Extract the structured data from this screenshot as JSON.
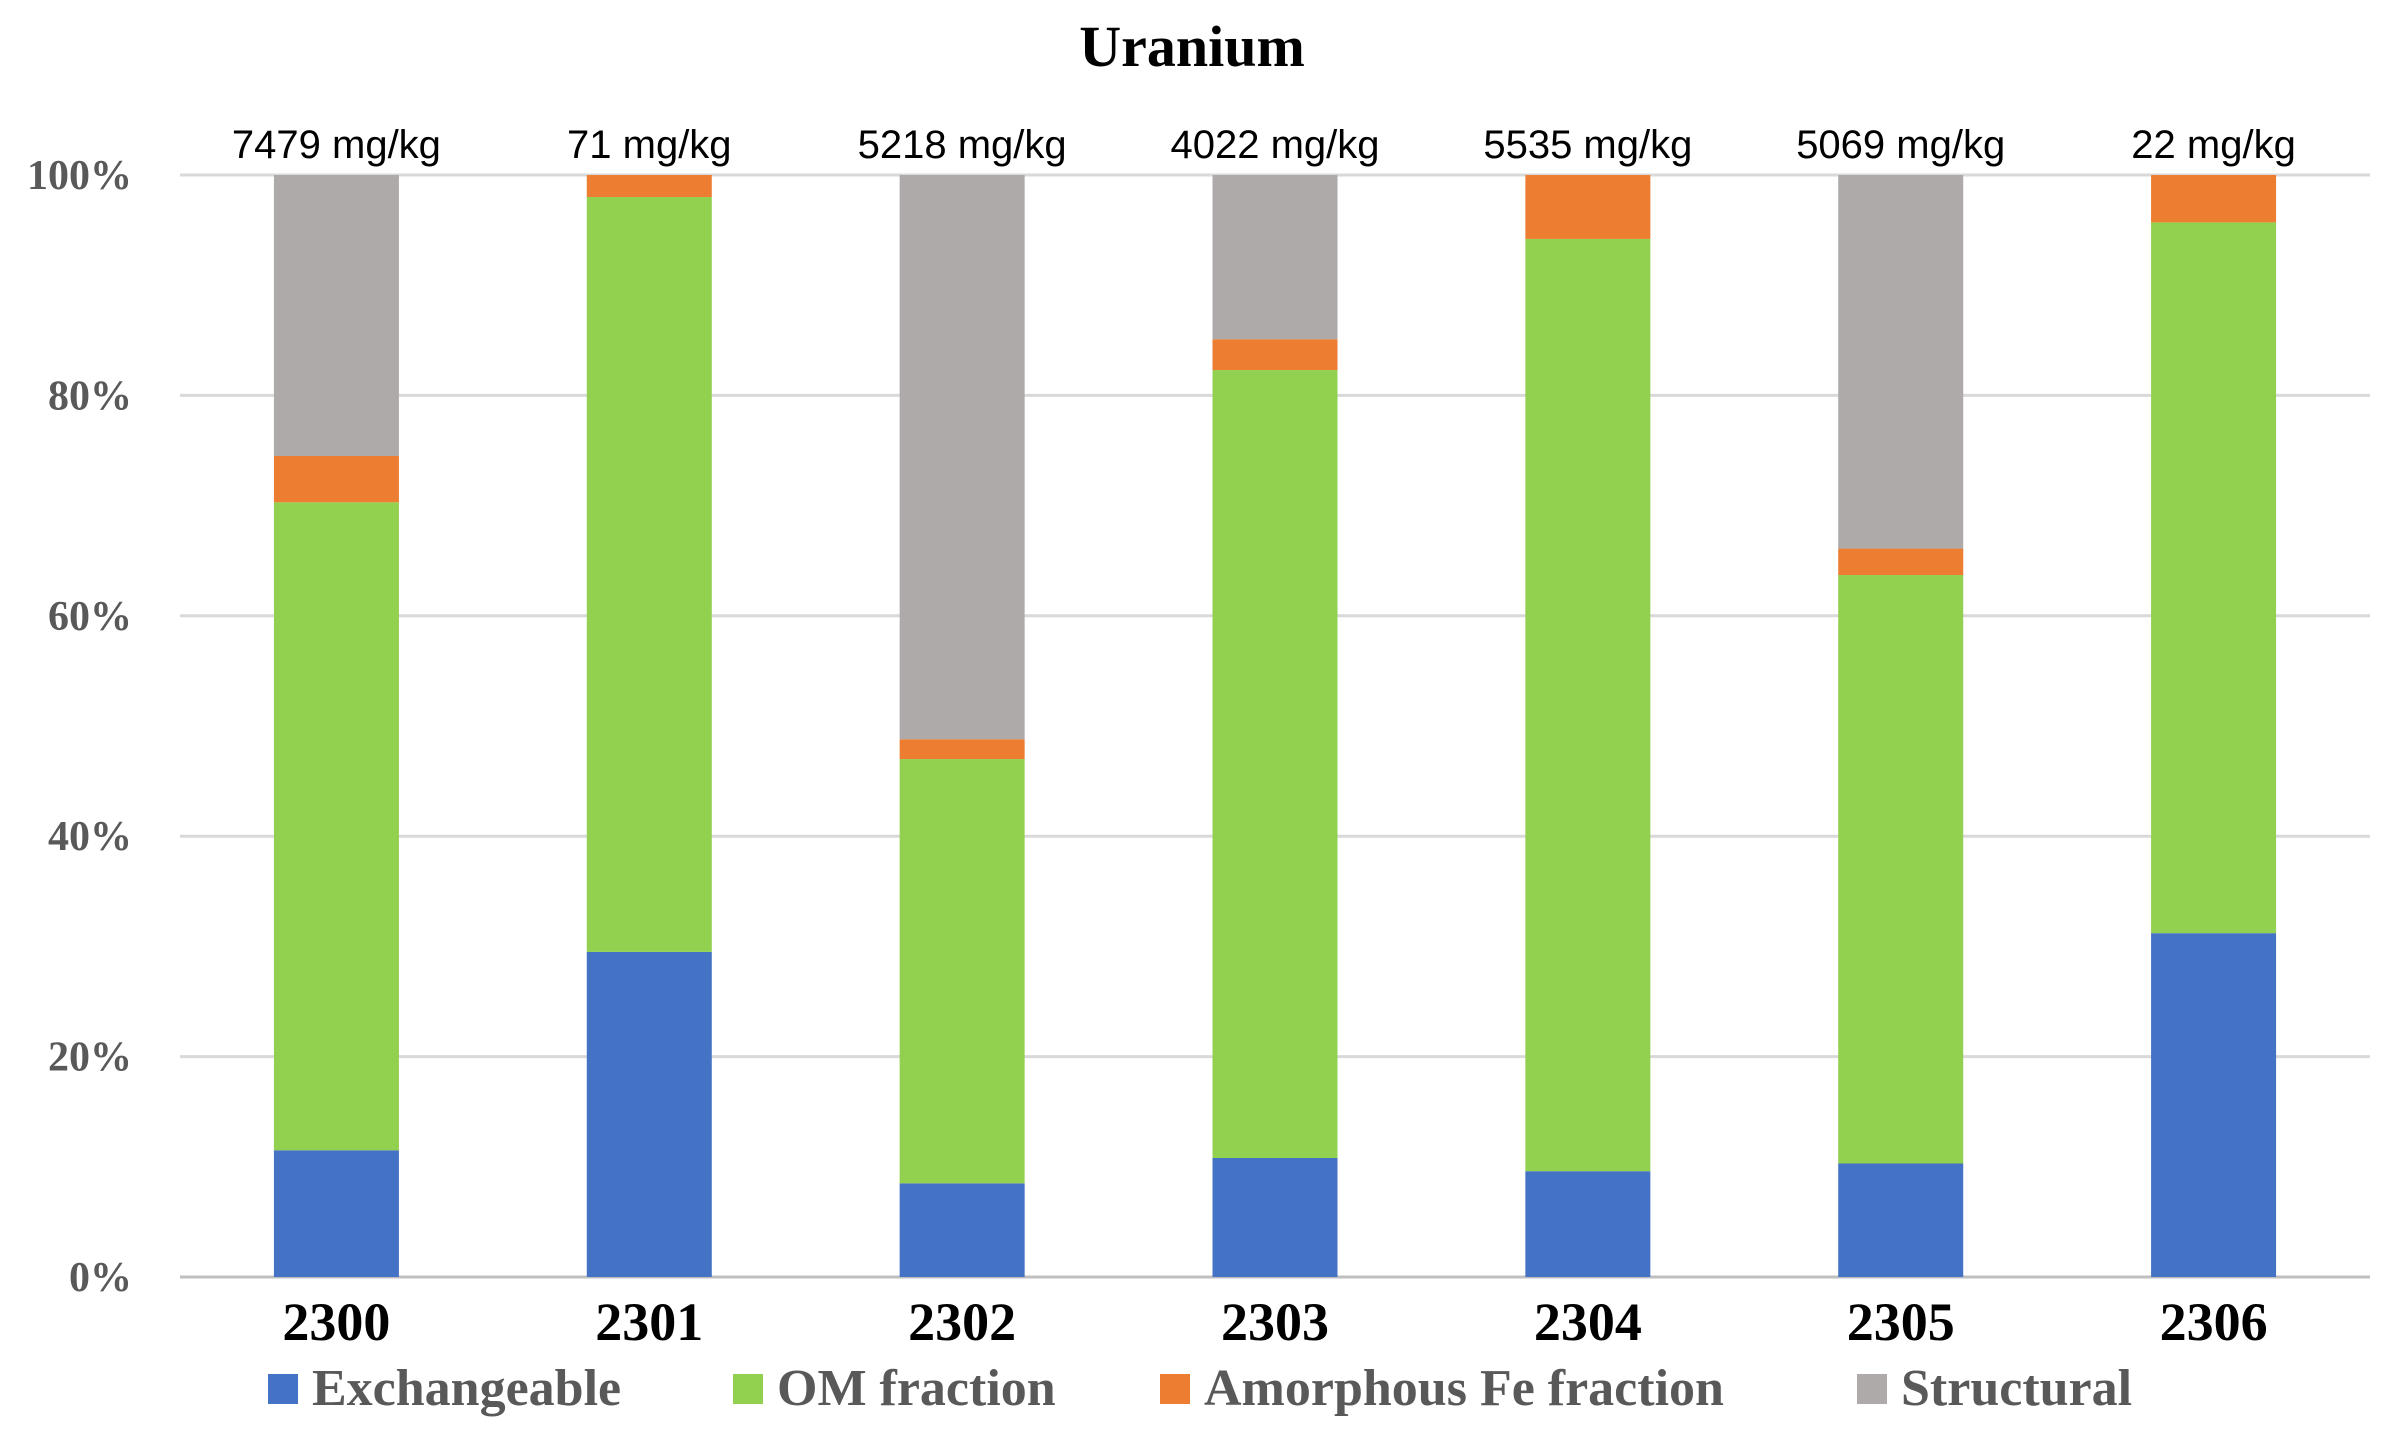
{
  "chart_data": {
    "type": "bar",
    "stacked": true,
    "percent": true,
    "title": "Uranium",
    "categories": [
      "2300",
      "2301",
      "2302",
      "2303",
      "2304",
      "2305",
      "2306"
    ],
    "totals": [
      "7479 mg/kg",
      "71 mg/kg",
      "5218 mg/kg",
      "4022 mg/kg",
      "5535 mg/kg",
      "5069 mg/kg",
      "22 mg/kg"
    ],
    "series": [
      {
        "name": "Exchangeable",
        "color": "#4472c4",
        "values": [
          11.5,
          29.5,
          8.5,
          10.8,
          9.6,
          10.3,
          31.2
        ]
      },
      {
        "name": "OM fraction",
        "color": "#92d050",
        "values": [
          58.8,
          68.5,
          38.5,
          71.5,
          84.6,
          53.4,
          64.5
        ]
      },
      {
        "name": "Amorphous Fe fraction",
        "color": "#ed7d31",
        "values": [
          4.2,
          2.0,
          1.8,
          2.8,
          5.8,
          2.4,
          4.3
        ]
      },
      {
        "name": "Structural",
        "color": "#aeaaaa",
        "values": [
          25.5,
          0,
          51.2,
          14.9,
          0,
          33.9,
          0
        ]
      }
    ],
    "ylim": [
      0,
      100
    ],
    "yticks": [
      "0%",
      "20%",
      "40%",
      "60%",
      "80%",
      "100%"
    ],
    "xlabel": "",
    "ylabel": "",
    "grid": true,
    "legend": "bottom"
  }
}
